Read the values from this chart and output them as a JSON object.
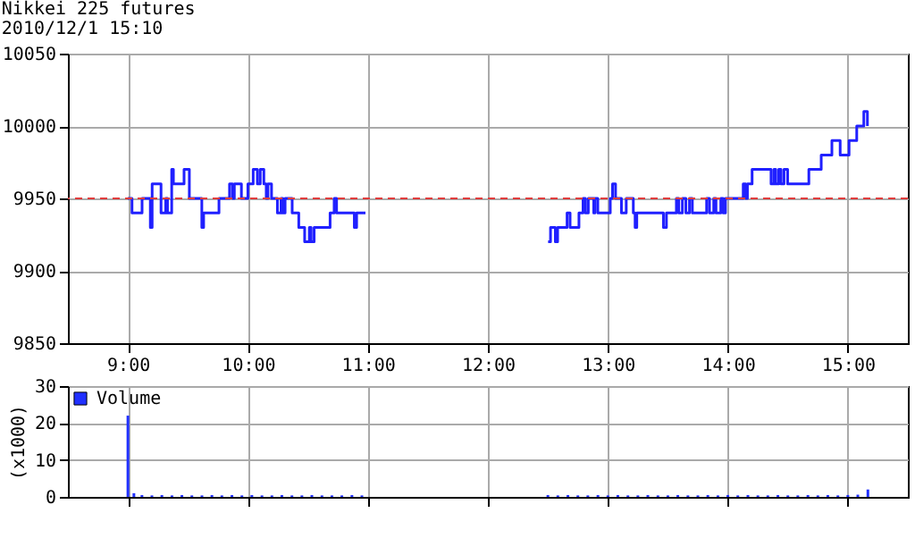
{
  "chart_data": [
    {
      "type": "step",
      "title": "Nikkei 225 futures",
      "subtitle": "2010/12/1 15:10",
      "xlim": [
        8.5,
        15.5
      ],
      "xticks": [
        {
          "value": 9,
          "label": "9:00"
        },
        {
          "value": 10,
          "label": "10:00"
        },
        {
          "value": 11,
          "label": "11:00"
        },
        {
          "value": 12,
          "label": "12:00"
        },
        {
          "value": 13,
          "label": "13:00"
        },
        {
          "value": 14,
          "label": "14:00"
        },
        {
          "value": 15,
          "label": "15:00"
        }
      ],
      "ylim": [
        9850,
        10050
      ],
      "yticks": [
        9850,
        9900,
        9950,
        10000,
        10050
      ],
      "grid": true,
      "legend": false,
      "ref_lines": [
        {
          "axis": "y",
          "value": 9950,
          "color": "#e03c3c",
          "line_style": "dashed"
        }
      ],
      "series": [
        {
          "color": "#2020ff",
          "x": [
            9.0,
            9.034,
            9.118,
            9.187,
            9.202,
            9.276,
            9.315,
            9.33,
            9.365,
            9.379,
            9.468,
            9.512,
            9.616,
            9.631,
            9.759,
            9.847,
            9.872,
            9.887,
            9.946,
            10.0,
            10.044,
            10.079,
            10.103,
            10.133,
            10.153,
            10.167,
            10.197,
            10.246,
            10.276,
            10.291,
            10.31,
            10.369,
            10.424,
            10.473,
            10.512,
            10.527,
            10.552,
            10.685,
            10.719,
            10.739,
            10.887,
            10.906,
            10.98,
            11.5,
            12.502,
            12.522,
            12.562,
            12.581,
            12.66,
            12.685,
            12.759,
            12.793,
            12.813,
            12.837,
            12.882,
            12.892,
            12.916,
            13.02,
            13.039,
            13.064,
            13.113,
            13.153,
            13.212,
            13.227,
            13.241,
            13.463,
            13.488,
            13.571,
            13.591,
            13.621,
            13.65,
            13.68,
            13.704,
            13.823,
            13.847,
            13.882,
            13.901,
            13.941,
            13.961,
            13.98,
            14.128,
            14.148,
            14.163,
            14.202,
            14.36,
            14.384,
            14.399,
            14.424,
            14.443,
            14.468,
            14.498,
            14.675,
            14.778,
            14.867,
            14.936,
            15.01,
            15.074,
            15.133,
            15.163
          ],
          "values": [
            9950,
            9940,
            9950,
            9930,
            9960,
            9940,
            9950,
            9940,
            9970,
            9960,
            9970,
            9950,
            9930,
            9940,
            9950,
            9960,
            9950,
            9960,
            9950,
            9960,
            9970,
            9960,
            9970,
            9960,
            9950,
            9960,
            9950,
            9940,
            9950,
            9940,
            9950,
            9940,
            9930,
            9920,
            9930,
            9920,
            9930,
            9940,
            9950,
            9940,
            9930,
            9940,
            9940,
            null,
            9920,
            9930,
            9920,
            9930,
            9940,
            9930,
            9940,
            9950,
            9940,
            9950,
            9940,
            9950,
            9940,
            9950,
            9960,
            9950,
            9940,
            9950,
            9940,
            9930,
            9940,
            9930,
            9940,
            9950,
            9940,
            9950,
            9940,
            9950,
            9940,
            9950,
            9940,
            9950,
            9940,
            9950,
            9940,
            9950,
            9960,
            9950,
            9960,
            9970,
            9960,
            9970,
            9960,
            9970,
            9960,
            9970,
            9960,
            9970,
            9980,
            9990,
            9980,
            9990,
            10000,
            10010,
            10000
          ]
        }
      ]
    },
    {
      "type": "bar",
      "ylabel": "(x1000)",
      "xlim": [
        8.5,
        15.5
      ],
      "xticks": [
        {
          "value": 9,
          "label": null
        },
        {
          "value": 10,
          "label": null
        },
        {
          "value": 11,
          "label": null
        },
        {
          "value": 12,
          "label": null
        },
        {
          "value": 13,
          "label": null
        },
        {
          "value": 14,
          "label": null
        },
        {
          "value": 15,
          "label": null
        }
      ],
      "ylim": [
        0,
        30
      ],
      "yticks": [
        0,
        10,
        20,
        30
      ],
      "grid": true,
      "legend": "top left",
      "tick_labels": "y",
      "series": [
        {
          "name": "Volume",
          "color": "#2030ff",
          "x": [
            9.0,
            9.05,
            9.117,
            9.2,
            9.283,
            9.367,
            9.45,
            9.533,
            9.617,
            9.7,
            9.783,
            9.867,
            9.95,
            10.033,
            10.117,
            10.2,
            10.283,
            10.367,
            10.45,
            10.533,
            10.617,
            10.7,
            10.783,
            10.867,
            10.95,
            12.5,
            12.583,
            12.667,
            12.75,
            12.833,
            12.917,
            13.0,
            13.083,
            13.167,
            13.25,
            13.333,
            13.417,
            13.5,
            13.583,
            13.667,
            13.75,
            13.833,
            13.917,
            14.0,
            14.083,
            14.167,
            14.25,
            14.333,
            14.417,
            14.5,
            14.583,
            14.667,
            14.75,
            14.833,
            14.917,
            15.0,
            15.083,
            15.167
          ],
          "values": [
            22,
            1,
            0.5,
            0.4,
            0.5,
            0.4,
            0.5,
            0.4,
            0.4,
            0.5,
            0.4,
            0.5,
            0.4,
            0.5,
            0.4,
            0.4,
            0.5,
            0.4,
            0.4,
            0.5,
            0.4,
            0.4,
            0.4,
            0.5,
            0.4,
            0.5,
            0.4,
            0.5,
            0.4,
            0.4,
            0.5,
            0.4,
            0.5,
            0.4,
            0.4,
            0.5,
            0.4,
            0.4,
            0.5,
            0.4,
            0.4,
            0.5,
            0.4,
            0.5,
            0.4,
            0.5,
            0.4,
            0.4,
            0.5,
            0.4,
            0.4,
            0.5,
            0.4,
            0.5,
            0.4,
            0.5,
            0.6,
            2
          ]
        }
      ]
    }
  ]
}
